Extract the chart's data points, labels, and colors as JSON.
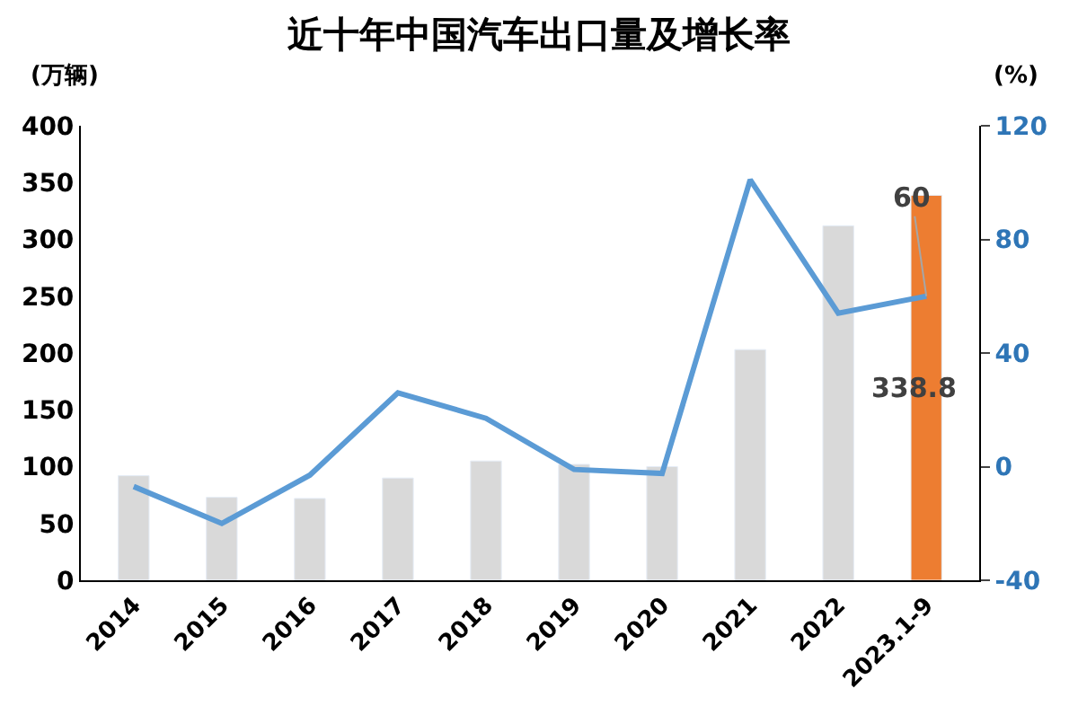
{
  "chart_data": {
    "type": "bar",
    "title": "近十年中国汽车出口量及增长率",
    "ylabel": "(万辆)",
    "y2label": "(%)",
    "categories": [
      "2014",
      "2015",
      "2016",
      "2017",
      "2018",
      "2019",
      "2020",
      "2021",
      "2022",
      "2023.1-9"
    ],
    "series": [
      {
        "colors": [
          "#d9d9d9",
          "#d9d9d9",
          "#d9d9d9",
          "#d9d9d9",
          "#d9d9d9",
          "#d9d9d9",
          "#d9d9d9",
          "#d9d9d9",
          "#d9d9d9",
          "#ed7d31"
        ],
        "values": [
          92,
          73,
          72,
          90,
          105,
          102,
          100,
          203,
          312,
          338.8
        ],
        "value_labels": [
          null,
          null,
          null,
          null,
          null,
          null,
          null,
          null,
          null,
          "338.8"
        ]
      },
      {
        "type": "line",
        "axis": "y2",
        "color": "#5b9bd5",
        "values": [
          -7,
          -20,
          -3,
          26,
          17,
          -1,
          -2.4,
          101,
          54,
          60
        ],
        "value_labels": [
          null,
          null,
          null,
          null,
          null,
          null,
          null,
          null,
          null,
          "60"
        ]
      }
    ],
    "ylim": [
      0,
      400
    ],
    "yticks": [
      0,
      50,
      100,
      150,
      200,
      250,
      300,
      350,
      400
    ],
    "y2lim": [
      -40,
      120
    ],
    "y2ticks": [
      -40,
      0,
      40,
      80,
      120
    ],
    "marker": "none",
    "line_style": "solid"
  }
}
